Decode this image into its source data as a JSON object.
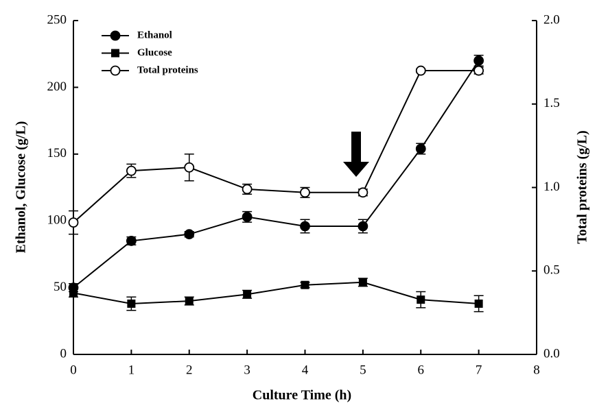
{
  "chart_data": {
    "type": "line",
    "x_label": "Culture Time (h)",
    "y_label": "Ethanol, Glucose (g/L)",
    "y2_label": "Total proteins (g/L)",
    "x": [
      0,
      1,
      2,
      3,
      4,
      5,
      6,
      7
    ],
    "series": [
      {
        "name": "Ethanol",
        "color": "#000000",
        "marker": "circle",
        "values": [
          50,
          85,
          90,
          103,
          96,
          96,
          154,
          220
        ],
        "errors": [
          3,
          3,
          2,
          4,
          5,
          5,
          4,
          4
        ]
      },
      {
        "name": "Glucose",
        "color": "#000000",
        "marker": "square",
        "values": [
          46,
          38,
          40,
          45,
          52,
          54,
          41,
          38
        ],
        "errors": [
          3,
          5,
          3,
          3,
          2,
          3,
          6,
          6
        ]
      },
      {
        "name": "Total proteins",
        "color": "#000000",
        "marker": "circle-open",
        "axis": "y2",
        "values": [
          0.79,
          1.1,
          1.12,
          0.99,
          0.97,
          0.97,
          1.7,
          1.7
        ],
        "errors": [
          0.07,
          0.04,
          0.08,
          0.03,
          0.03,
          0.02,
          0.01,
          0.02
        ]
      }
    ],
    "xlim": [
      0,
      8
    ],
    "xticks": [
      0,
      1,
      2,
      3,
      4,
      5,
      6,
      7,
      8
    ],
    "ylim": [
      0,
      250
    ],
    "yticks": [
      0,
      50,
      100,
      150,
      200,
      250
    ],
    "y2lim": [
      0,
      2
    ],
    "y2ticks": [
      {
        "value": 0,
        "label": "0.0"
      },
      0.5,
      {
        "value": 1,
        "label": "1.0"
      },
      1.5,
      {
        "value": 2,
        "label": "2.0"
      }
    ],
    "legend": "top-left"
  }
}
